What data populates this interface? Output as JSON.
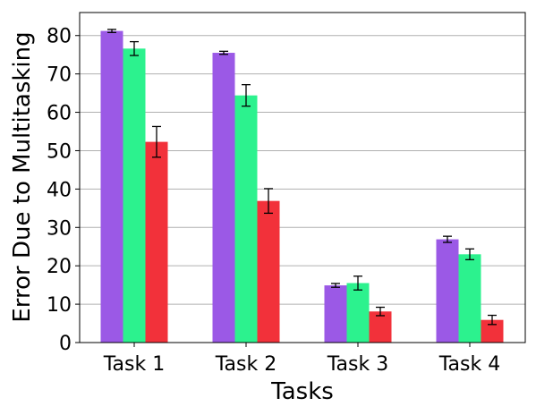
{
  "chart_data": {
    "type": "bar",
    "categories": [
      "Task 1",
      "Task 2",
      "Task 3",
      "Task 4"
    ],
    "series": [
      {
        "color": "#9b59e6",
        "values": [
          81.2,
          75.5,
          14.9,
          26.9
        ],
        "errors": [
          0.4,
          0.4,
          0.5,
          0.8
        ]
      },
      {
        "color": "#2cf28e",
        "values": [
          76.6,
          64.4,
          15.5,
          23.0
        ],
        "errors": [
          1.8,
          2.8,
          1.8,
          1.4
        ]
      },
      {
        "color": "#f2313a",
        "values": [
          52.3,
          36.9,
          8.1,
          5.9
        ],
        "errors": [
          4.0,
          3.2,
          1.1,
          1.2
        ]
      }
    ],
    "xlabel": "Tasks",
    "ylabel": "Error Due to Multitasking",
    "ylim": [
      0,
      86
    ],
    "yticks": [
      0,
      10,
      20,
      30,
      40,
      50,
      60,
      70,
      80
    ],
    "grid": "horizontal"
  }
}
